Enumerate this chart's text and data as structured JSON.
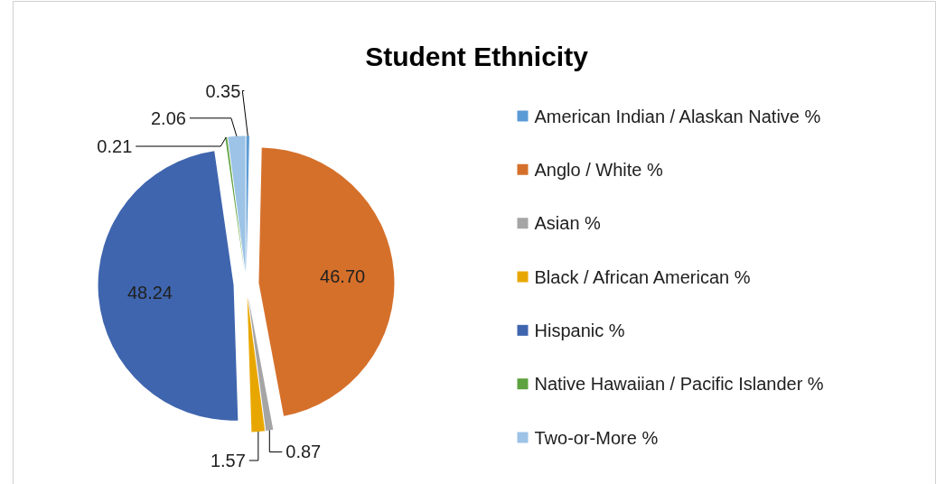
{
  "chart_data": {
    "type": "pie",
    "title": "Student Ethnicity",
    "categories": [
      "American Indian / Alaskan Native %",
      "Anglo / White %",
      "Asian %",
      "Black / African American %",
      "Hispanic %",
      "Native Hawaiian / Pacific Islander %",
      "Two-or-More %"
    ],
    "values": [
      0.35,
      46.7,
      0.87,
      1.57,
      48.24,
      0.21,
      2.06
    ],
    "colors": [
      "#5b9bd5",
      "#d5702b",
      "#a5a5a5",
      "#e8a700",
      "#3f65ae",
      "#5ea23f",
      "#9dc3e6"
    ],
    "value_labels": [
      "0.35",
      "46.70",
      "0.87",
      "1.57",
      "48.24",
      "0.21",
      "2.06"
    ],
    "legend": "right"
  }
}
